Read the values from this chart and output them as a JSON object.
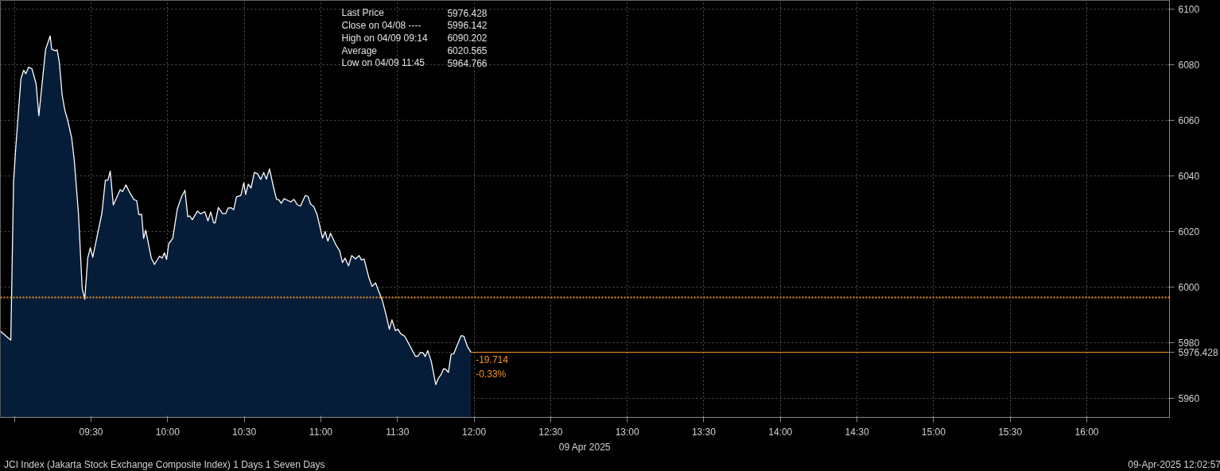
{
  "chart_data": {
    "type": "area",
    "xlabel": "09 Apr 2025",
    "x": [
      8.908,
      8.976,
      8.994,
      9.007,
      9.042,
      9.06,
      9.074,
      9.092,
      9.114,
      9.141,
      9.159,
      9.203,
      9.233,
      9.243,
      9.266,
      9.279,
      9.293,
      9.311,
      9.329,
      9.347,
      9.374,
      9.391,
      9.418,
      9.442,
      9.459,
      9.478,
      9.495,
      9.511,
      9.544,
      9.571,
      9.593,
      9.61,
      9.625,
      9.645,
      9.669,
      9.69,
      9.705,
      9.728,
      9.749,
      9.78,
      9.798,
      9.811,
      9.83,
      9.843,
      9.857,
      9.893,
      9.914,
      9.947,
      9.964,
      9.979,
      9.993,
      10.007,
      10.033,
      10.063,
      10.09,
      10.113,
      10.131,
      10.144,
      10.161,
      10.194,
      10.215,
      10.242,
      10.263,
      10.281,
      10.3,
      10.31,
      10.331,
      10.358,
      10.379,
      10.394,
      10.414,
      10.431,
      10.449,
      10.478,
      10.497,
      10.509,
      10.526,
      10.544,
      10.566,
      10.587,
      10.607,
      10.627,
      10.644,
      10.665,
      10.69,
      10.711,
      10.725,
      10.742,
      10.76,
      10.786,
      10.803,
      10.825,
      10.846,
      10.867,
      10.898,
      10.916,
      10.933,
      10.954,
      10.976,
      11.011,
      11.028,
      11.046,
      11.063,
      11.097,
      11.123,
      11.141,
      11.158,
      11.181,
      11.201,
      11.227,
      11.25,
      11.265,
      11.282,
      11.314,
      11.334,
      11.357,
      11.38,
      11.4,
      11.426,
      11.447,
      11.464,
      11.487,
      11.504,
      11.521,
      11.547,
      11.573,
      11.617,
      11.634,
      11.651,
      11.669,
      11.681,
      11.698,
      11.721,
      11.75,
      11.767,
      11.784,
      11.801,
      11.815,
      11.833,
      11.85,
      11.868,
      11.888,
      11.916,
      11.934,
      11.955,
      11.98
    ],
    "series": [
      {
        "color": "#061d3a",
        "values": [
          5984,
          5980.8,
          6037.6,
          6049,
          6074.8,
          6077.9,
          6076.6,
          6079,
          6078.4,
          6073,
          6061.5,
          6085.4,
          6090.2,
          6085.4,
          6084.9,
          6085.2,
          6080.6,
          6069,
          6063.4,
          6060,
          6053.3,
          6045,
          6026,
          5999.4,
          5995.5,
          6010.3,
          6014,
          6010.6,
          6019.4,
          6026.5,
          6038.3,
          6038.3,
          6041.6,
          6029.4,
          6032.3,
          6034.9,
          6034.2,
          6036.6,
          6034.2,
          6031.3,
          6031,
          6026,
          6026,
          6017.4,
          6020.3,
          6010.3,
          6008,
          6011,
          6010.3,
          6012.2,
          6009.8,
          6015.5,
          6017.4,
          6028,
          6032.3,
          6034.7,
          6025.2,
          6025.5,
          6024.1,
          6027.2,
          6026.2,
          6027,
          6023.7,
          6026.9,
          6023,
          6023,
          6028.5,
          6026.3,
          6026.3,
          6028.3,
          6028.4,
          6027.7,
          6032.3,
          6032.8,
          6037.4,
          6033.2,
          6036.9,
          6035.5,
          6041.1,
          6040.6,
          6038.6,
          6041.1,
          6038.7,
          6042.4,
          6036,
          6031.4,
          6031.3,
          6030,
          6031.7,
          6031,
          6030.5,
          6031.4,
          6029.5,
          6029,
          6032.8,
          6032.5,
          6029.7,
          6028.8,
          6025.8,
          6017.5,
          6019.8,
          6016.4,
          6019.2,
          6015.2,
          6012.9,
          6008.7,
          6010.3,
          6007.5,
          6011.2,
          6010,
          6011.2,
          6009.6,
          6010,
          6003.2,
          6000.1,
          6001.4,
          5998,
          5995.3,
          5989.8,
          5984.7,
          5988.1,
          5984.2,
          5984.7,
          5983.1,
          5982.2,
          5979.6,
          5975,
          5975,
          5976.4,
          5976.1,
          5974.9,
          5977,
          5973.1,
          5964.8,
          5967.1,
          5968.3,
          5970.5,
          5970.3,
          5969.2,
          5975.7,
          5975.9,
          5978.7,
          5982.4,
          5982.2,
          5978.7,
          5976.4
        ]
      }
    ],
    "xlim": [
      8.908,
      16.54
    ],
    "ylim": [
      5953,
      6103
    ],
    "xticks": [
      {
        "value": 9.0,
        "label": null
      },
      {
        "value": 9.5,
        "label": "09:30"
      },
      {
        "value": 10.0,
        "label": "10:00"
      },
      {
        "value": 10.5,
        "label": "10:30"
      },
      {
        "value": 11.0,
        "label": "11:00"
      },
      {
        "value": 11.5,
        "label": "11:30"
      },
      {
        "value": 12.0,
        "label": "12:00"
      },
      {
        "value": 12.5,
        "label": "12:30"
      },
      {
        "value": 13.0,
        "label": "13:00"
      },
      {
        "value": 13.5,
        "label": "13:30"
      },
      {
        "value": 14.0,
        "label": "14:00"
      },
      {
        "value": 14.5,
        "label": "14:30"
      },
      {
        "value": 15.0,
        "label": "15:00"
      },
      {
        "value": 15.5,
        "label": "15:30"
      },
      {
        "value": 16.0,
        "label": "16:00"
      }
    ],
    "yticks": [
      5960,
      {
        "value": 5976.428,
        "label": "5976.428"
      },
      5980,
      6000,
      6020,
      6040,
      6060,
      6080,
      6100
    ],
    "grid": true,
    "ref_lines": [
      {
        "axis": "y",
        "value": 5996.142,
        "color": "#f7941d",
        "line_style": "dotted"
      },
      {
        "axis": "y",
        "value": 5976.428,
        "color": "#f7941d",
        "line_style": "solid"
      }
    ],
    "annotations": [
      "Last Price",
      "5976.428",
      "Close on 04/08 ----",
      "5996.142",
      "High on 04/09 09:14",
      "6090.202",
      "Average",
      "6020.565",
      "Low on 04/09 11:45",
      "5964.766",
      {
        "text": "-19.714",
        "x": 11.98,
        "y": 5976.428
      },
      {
        "text": "-0.33%",
        "x": 11.98,
        "y": 5976.428
      },
      "JCI Index (Jakarta Stock Exchange Composite Index) 1 Days 1 Seven Days",
      "09-Apr-2025 12:02:57"
    ]
  }
}
